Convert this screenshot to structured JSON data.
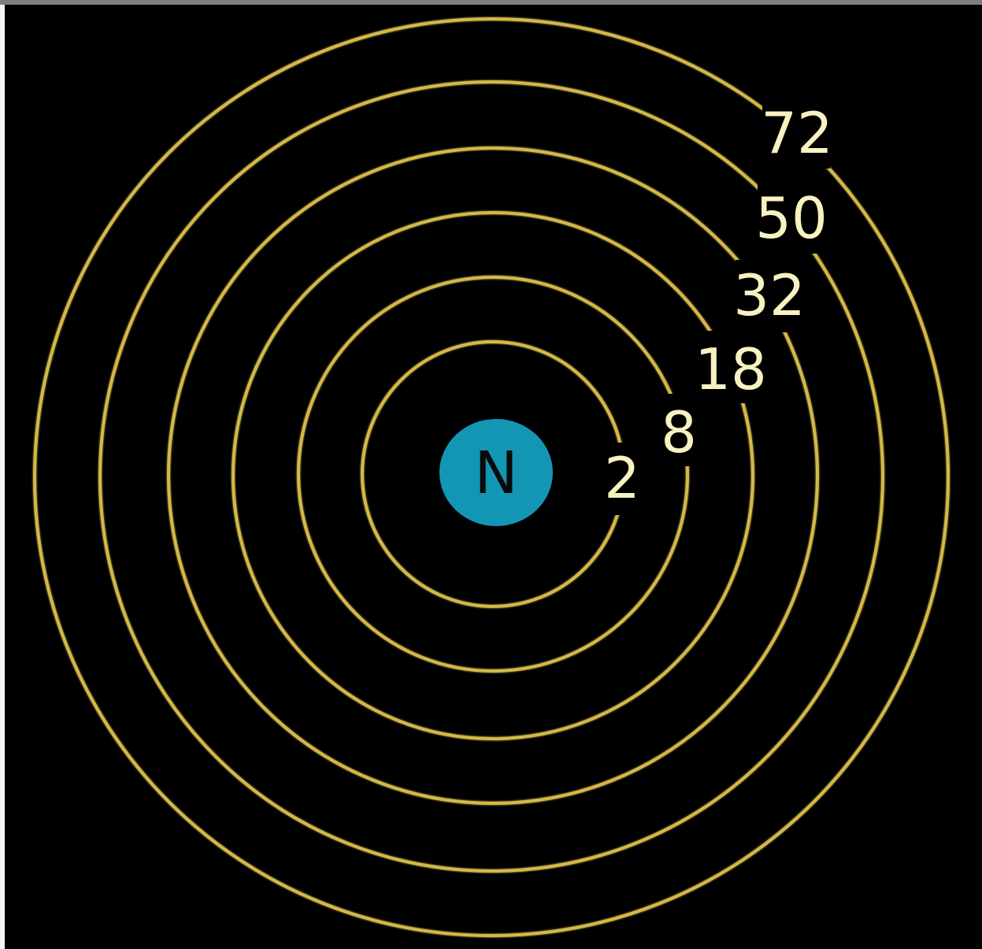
{
  "diagram": {
    "nucleus": {
      "label": "N"
    },
    "shells": [
      {
        "capacity": "2"
      },
      {
        "capacity": "8"
      },
      {
        "capacity": "18"
      },
      {
        "capacity": "32"
      },
      {
        "capacity": "50"
      },
      {
        "capacity": "72"
      }
    ]
  },
  "colors": {
    "background": "#000000",
    "ring": "#d4b84a",
    "label": "#f8f2c0",
    "nucleus": "#1396b4",
    "nucleus_text": "#0a0a0a"
  }
}
